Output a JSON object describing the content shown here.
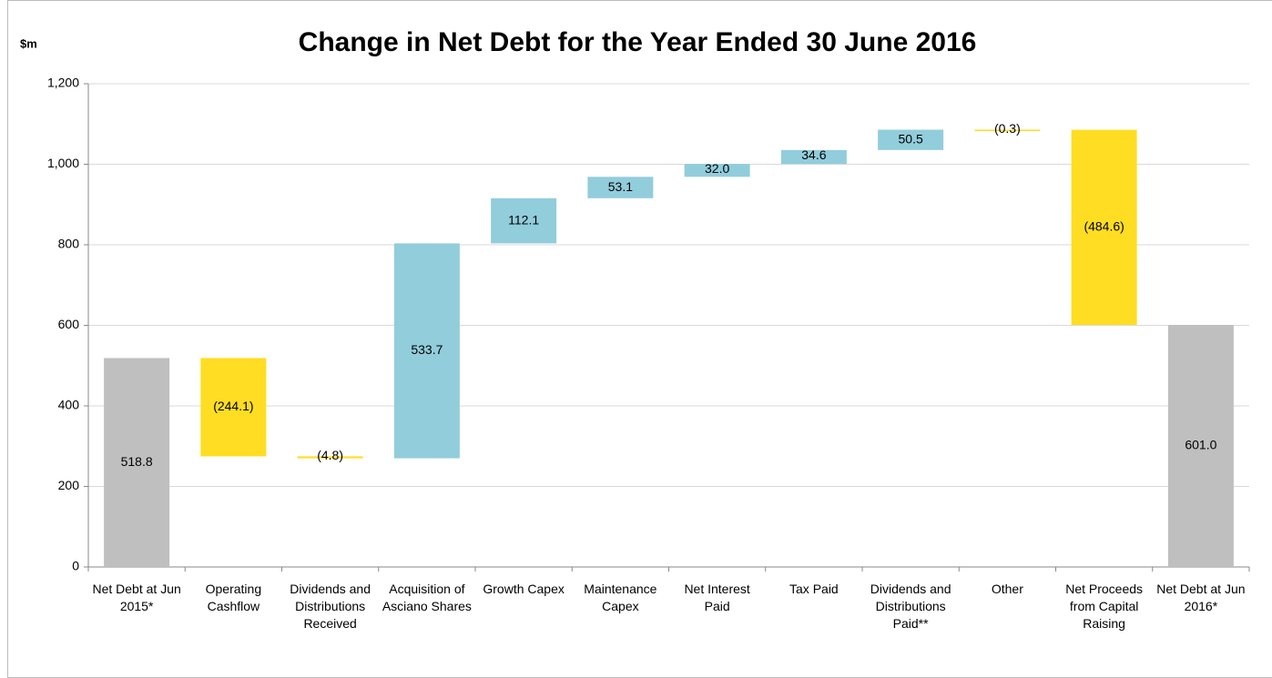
{
  "chart_data": {
    "type": "waterfall",
    "title": "Change in Net Debt for the Year Ended 30 June 2016",
    "y_label": "$m",
    "categories": [
      "Net Debt at Jun 2015*",
      "Operating Cashflow",
      "Dividends and Distributions Received",
      "Acquisition of Asciano Shares",
      "Growth Capex",
      "Maintenance Capex",
      "Net Interest Paid",
      "Tax Paid",
      "Dividends and Distributions Paid**",
      "Other",
      "Net Proceeds from Capital Raising",
      "Net Debt at Jun 2016*"
    ],
    "values": [
      518.8,
      -244.1,
      -4.8,
      533.7,
      112.1,
      53.1,
      32.0,
      34.6,
      50.5,
      -0.3,
      -484.6,
      601.0
    ],
    "value_labels": [
      "518.8",
      "(244.1)",
      "(4.8)",
      "533.7",
      "112.1",
      "53.1",
      "32.0",
      "34.6",
      "50.5",
      "(0.3)",
      "(484.6)",
      "601.0"
    ],
    "colors": [
      "#bfbfbf",
      "#ffdd22",
      "#ffdd22",
      "#92cddc",
      "#92cddc",
      "#92cddc",
      "#92cddc",
      "#92cddc",
      "#92cddc",
      "#ffdd22",
      "#ffdd22",
      "#bfbfbf"
    ],
    "ylim": [
      0,
      1200
    ],
    "yticks": [
      0,
      {
        "value": 200,
        "label": "200"
      },
      {
        "value": 400,
        "label": "400"
      },
      {
        "value": 600,
        "label": "600"
      },
      {
        "value": 800,
        "label": "800"
      },
      {
        "value": 1000,
        "label": "1,000"
      },
      {
        "value": 1200,
        "label": "1,200"
      }
    ],
    "grid": true
  }
}
